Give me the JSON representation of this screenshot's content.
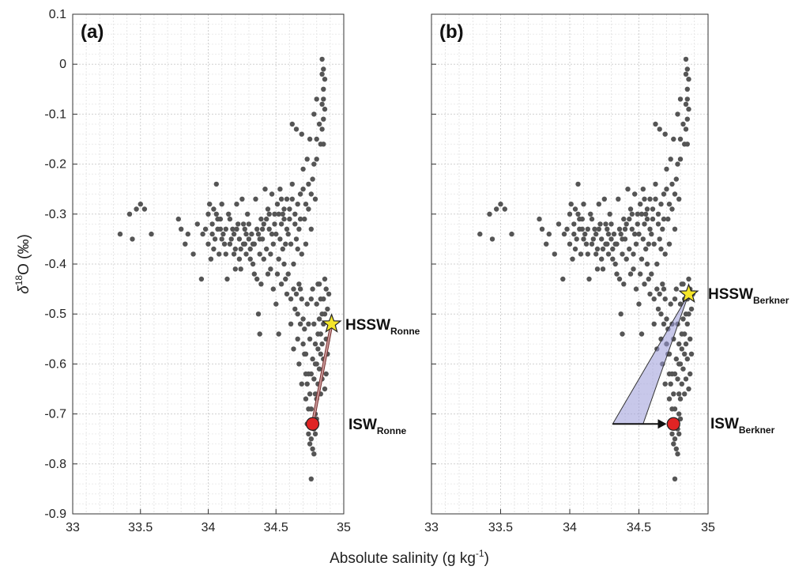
{
  "chart_data": [
    {
      "type": "scatter",
      "panel_label": "(a)",
      "xlim": [
        33,
        35
      ],
      "ylim": [
        -0.9,
        0.1
      ],
      "xlabel": "Absolute salinity (g kg",
      "xlabel_sup": "-1",
      "xlabel_end": ")",
      "ylabel_prefix": "δ",
      "ylabel_sup": "18",
      "ylabel_main": "O (‰)",
      "grid": true,
      "x_ticks": [
        33,
        33.5,
        34,
        34.5,
        35
      ],
      "x_tick_labels": [
        "33",
        "33.5",
        "34",
        "34.5",
        "35"
      ],
      "y_ticks": [
        0.1,
        0,
        -0.1,
        -0.2,
        -0.3,
        -0.4,
        -0.5,
        -0.6,
        -0.7,
        -0.8,
        -0.9
      ],
      "y_tick_labels": [
        "0.1",
        "0",
        "-0.1",
        "-0.2",
        "-0.3",
        "-0.4",
        "-0.5",
        "-0.6",
        "-0.7",
        "-0.8",
        "-0.9"
      ],
      "hssw": {
        "x": 34.91,
        "y": -0.52,
        "label": "HSSW",
        "sub": "Ronne"
      },
      "isw": {
        "x": 34.77,
        "y": -0.72,
        "label": "ISW",
        "sub": "Ronne"
      },
      "colors": {
        "points": "#555555",
        "star": "#f5e62a",
        "circle": "#e02424",
        "mixing_fill": "#c99a9a"
      }
    },
    {
      "type": "scatter",
      "panel_label": "(b)",
      "xlim": [
        33,
        35
      ],
      "ylim": [
        -0.9,
        0.1
      ],
      "grid": true,
      "x_ticks": [
        33,
        33.5,
        34,
        34.5,
        35
      ],
      "x_tick_labels": [
        "33",
        "33.5",
        "34",
        "34.5",
        "35"
      ],
      "hssw": {
        "x": 34.86,
        "y": -0.46,
        "label": "HSSW",
        "sub": "Berkner"
      },
      "isw": {
        "x": 34.75,
        "y": -0.72,
        "label": "ISW",
        "sub": "Berkner"
      },
      "triangle": [
        [
          34.86,
          -0.46
        ],
        [
          34.31,
          -0.72
        ],
        [
          34.53,
          -0.72
        ]
      ],
      "arrow": {
        "from": [
          34.31,
          -0.72
        ],
        "to": [
          34.7,
          -0.72
        ]
      },
      "colors": {
        "points": "#555555",
        "star": "#f5e62a",
        "circle": "#e02424",
        "triangle_fill": "#9a9ad8"
      }
    }
  ],
  "points": [
    [
      33.35,
      -0.34
    ],
    [
      33.42,
      -0.3
    ],
    [
      33.44,
      -0.35
    ],
    [
      33.47,
      -0.29
    ],
    [
      33.5,
      -0.28
    ],
    [
      33.53,
      -0.29
    ],
    [
      33.58,
      -0.34
    ],
    [
      33.78,
      -0.31
    ],
    [
      33.8,
      -0.33
    ],
    [
      33.85,
      -0.34
    ],
    [
      33.89,
      -0.38
    ],
    [
      33.95,
      -0.43
    ],
    [
      33.98,
      -0.33
    ],
    [
      34.0,
      -0.36
    ],
    [
      34.01,
      -0.28
    ],
    [
      34.02,
      -0.39
    ],
    [
      34.03,
      -0.32
    ],
    [
      34.04,
      -0.29
    ],
    [
      34.05,
      -0.35
    ],
    [
      34.06,
      -0.24
    ],
    [
      34.07,
      -0.33
    ],
    [
      34.08,
      -0.38
    ],
    [
      34.09,
      -0.31
    ],
    [
      34.1,
      -0.28
    ],
    [
      34.11,
      -0.34
    ],
    [
      34.12,
      -0.36
    ],
    [
      34.14,
      -0.43
    ],
    [
      34.15,
      -0.3
    ],
    [
      34.16,
      -0.36
    ],
    [
      34.18,
      -0.33
    ],
    [
      34.19,
      -0.38
    ],
    [
      34.2,
      -0.37
    ],
    [
      34.21,
      -0.28
    ],
    [
      34.22,
      -0.32
    ],
    [
      34.23,
      -0.35
    ],
    [
      34.24,
      -0.41
    ],
    [
      34.25,
      -0.27
    ],
    [
      34.26,
      -0.36
    ],
    [
      34.27,
      -0.33
    ],
    [
      34.28,
      -0.38
    ],
    [
      34.29,
      -0.3
    ],
    [
      34.3,
      -0.35
    ],
    [
      34.31,
      -0.37
    ],
    [
      34.32,
      -0.34
    ],
    [
      34.33,
      -0.4
    ],
    [
      34.34,
      -0.36
    ],
    [
      34.35,
      -0.27
    ],
    [
      34.36,
      -0.43
    ],
    [
      34.37,
      -0.34
    ],
    [
      34.38,
      -0.38
    ],
    [
      34.39,
      -0.31
    ],
    [
      34.4,
      -0.35
    ],
    [
      34.41,
      -0.32
    ],
    [
      34.42,
      -0.25
    ],
    [
      34.43,
      -0.37
    ],
    [
      34.44,
      -0.29
    ],
    [
      34.45,
      -0.33
    ],
    [
      34.46,
      -0.41
    ],
    [
      34.47,
      -0.26
    ],
    [
      34.48,
      -0.36
    ],
    [
      34.49,
      -0.3
    ],
    [
      34.5,
      -0.34
    ],
    [
      34.51,
      -0.28
    ],
    [
      34.52,
      -0.39
    ],
    [
      34.53,
      -0.25
    ],
    [
      34.54,
      -0.32
    ],
    [
      34.55,
      -0.37
    ],
    [
      34.56,
      -0.29
    ],
    [
      34.57,
      -0.43
    ],
    [
      34.58,
      -0.27
    ],
    [
      34.59,
      -0.34
    ],
    [
      34.6,
      -0.31
    ],
    [
      34.61,
      -0.36
    ],
    [
      34.62,
      -0.24
    ],
    [
      34.63,
      -0.4
    ],
    [
      34.64,
      -0.3
    ],
    [
      34.65,
      -0.35
    ],
    [
      34.66,
      -0.28
    ],
    [
      34.67,
      -0.33
    ],
    [
      34.68,
      -0.26
    ],
    [
      34.69,
      -0.38
    ],
    [
      34.7,
      -0.21
    ],
    [
      34.71,
      -0.31
    ],
    [
      34.72,
      -0.36
    ],
    [
      34.73,
      -0.19
    ],
    [
      34.74,
      -0.29
    ],
    [
      34.75,
      -0.15
    ],
    [
      34.76,
      -0.33
    ],
    [
      34.77,
      -0.23
    ],
    [
      34.78,
      -0.1
    ],
    [
      34.79,
      -0.27
    ],
    [
      34.62,
      -0.12
    ],
    [
      34.65,
      -0.13
    ],
    [
      34.69,
      -0.14
    ],
    [
      34.8,
      -0.07
    ],
    [
      34.82,
      -0.12
    ],
    [
      34.83,
      -0.16
    ],
    [
      34.84,
      -0.08
    ],
    [
      34.8,
      -0.15
    ],
    [
      34.84,
      0.01
    ],
    [
      34.85,
      -0.01
    ],
    [
      34.84,
      -0.02
    ],
    [
      34.86,
      -0.03
    ],
    [
      34.85,
      -0.05
    ],
    [
      34.85,
      -0.07
    ],
    [
      34.86,
      -0.09
    ],
    [
      34.85,
      -0.11
    ],
    [
      34.84,
      -0.13
    ],
    [
      34.85,
      -0.16
    ],
    [
      34.37,
      -0.5
    ],
    [
      34.38,
      -0.54
    ],
    [
      34.5,
      -0.48
    ],
    [
      34.52,
      -0.54
    ],
    [
      34.58,
      -0.46
    ],
    [
      34.61,
      -0.52
    ],
    [
      34.63,
      -0.57
    ],
    [
      34.64,
      -0.49
    ],
    [
      34.66,
      -0.55
    ],
    [
      34.67,
      -0.6
    ],
    [
      34.68,
      -0.45
    ],
    [
      34.69,
      -0.64
    ],
    [
      34.7,
      -0.51
    ],
    [
      34.71,
      -0.58
    ],
    [
      34.72,
      -0.67
    ],
    [
      34.73,
      -0.48
    ],
    [
      34.74,
      -0.62
    ],
    [
      34.75,
      -0.55
    ],
    [
      34.76,
      -0.69
    ],
    [
      34.77,
      -0.45
    ],
    [
      34.78,
      -0.52
    ],
    [
      34.79,
      -0.6
    ],
    [
      34.8,
      -0.48
    ],
    [
      34.81,
      -0.57
    ],
    [
      34.82,
      -0.44
    ],
    [
      34.83,
      -0.54
    ],
    [
      34.84,
      -0.5
    ],
    [
      34.85,
      -0.47
    ],
    [
      34.86,
      -0.43
    ],
    [
      34.87,
      -0.55
    ],
    [
      34.88,
      -0.49
    ],
    [
      34.89,
      -0.46
    ],
    [
      34.88,
      -0.58
    ],
    [
      34.87,
      -0.62
    ],
    [
      34.86,
      -0.65
    ],
    [
      34.85,
      -0.59
    ],
    [
      34.84,
      -0.63
    ],
    [
      34.83,
      -0.66
    ],
    [
      34.82,
      -0.61
    ],
    [
      34.81,
      -0.64
    ],
    [
      34.8,
      -0.67
    ],
    [
      34.79,
      -0.7
    ],
    [
      34.78,
      -0.73
    ],
    [
      34.79,
      -0.66
    ],
    [
      34.76,
      -0.75
    ],
    [
      34.77,
      -0.77
    ],
    [
      34.78,
      -0.78
    ],
    [
      34.75,
      -0.76
    ],
    [
      34.74,
      -0.74
    ],
    [
      34.73,
      -0.72
    ],
    [
      34.79,
      -0.74
    ],
    [
      34.8,
      -0.71
    ],
    [
      34.76,
      -0.83
    ],
    [
      34.72,
      -0.58
    ],
    [
      34.74,
      -0.52
    ],
    [
      34.76,
      -0.47
    ],
    [
      34.81,
      -0.44
    ],
    [
      34.83,
      -0.47
    ],
    [
      34.85,
      -0.52
    ],
    [
      34.87,
      -0.45
    ],
    [
      34.84,
      -0.56
    ],
    [
      34.86,
      -0.5
    ],
    [
      34.82,
      -0.51
    ],
    [
      34.81,
      -0.54
    ],
    [
      34.83,
      -0.58
    ],
    [
      34.8,
      -0.6
    ],
    [
      34.79,
      -0.56
    ],
    [
      34.78,
      -0.63
    ],
    [
      34.77,
      -0.59
    ],
    [
      34.76,
      -0.62
    ],
    [
      34.75,
      -0.66
    ],
    [
      34.74,
      -0.69
    ],
    [
      34.73,
      -0.64
    ],
    [
      34.72,
      -0.62
    ],
    [
      34.71,
      -0.53
    ],
    [
      34.7,
      -0.56
    ],
    [
      34.69,
      -0.47
    ],
    [
      34.68,
      -0.52
    ],
    [
      34.67,
      -0.44
    ],
    [
      34.66,
      -0.5
    ],
    [
      34.65,
      -0.46
    ],
    [
      34.63,
      -0.45
    ],
    [
      34.61,
      -0.47
    ],
    [
      34.59,
      -0.42
    ],
    [
      34.56,
      -0.4
    ],
    [
      34.54,
      -0.44
    ],
    [
      34.51,
      -0.42
    ],
    [
      34.48,
      -0.45
    ],
    [
      34.46,
      -0.38
    ],
    [
      34.44,
      -0.42
    ],
    [
      34.41,
      -0.39
    ],
    [
      34.39,
      -0.44
    ],
    [
      34.34,
      -0.42
    ],
    [
      34.31,
      -0.39
    ],
    [
      34.28,
      -0.34
    ],
    [
      34.26,
      -0.32
    ],
    [
      34.23,
      -0.39
    ],
    [
      34.2,
      -0.41
    ],
    [
      34.17,
      -0.35
    ],
    [
      34.13,
      -0.33
    ],
    [
      34.1,
      -0.35
    ],
    [
      34.07,
      -0.31
    ],
    [
      34.04,
      -0.37
    ],
    [
      34.0,
      -0.3
    ],
    [
      33.96,
      -0.34
    ],
    [
      33.92,
      -0.32
    ],
    [
      33.83,
      -0.36
    ],
    [
      34.52,
      -0.3
    ],
    [
      34.54,
      -0.27
    ],
    [
      34.56,
      -0.31
    ],
    [
      34.58,
      -0.33
    ],
    [
      34.6,
      -0.29
    ],
    [
      34.62,
      -0.27
    ],
    [
      34.64,
      -0.32
    ],
    [
      34.66,
      -0.37
    ],
    [
      34.68,
      -0.31
    ],
    [
      34.7,
      -0.25
    ],
    [
      34.72,
      -0.28
    ],
    [
      34.74,
      -0.24
    ],
    [
      34.76,
      -0.26
    ],
    [
      34.78,
      -0.2
    ],
    [
      34.8,
      -0.19
    ],
    [
      34.57,
      -0.36
    ],
    [
      34.55,
      -0.3
    ],
    [
      34.53,
      -0.35
    ],
    [
      34.49,
      -0.32
    ],
    [
      34.47,
      -0.34
    ],
    [
      34.45,
      -0.3
    ],
    [
      34.43,
      -0.31
    ],
    [
      34.4,
      -0.33
    ],
    [
      34.38,
      -0.35
    ],
    [
      34.36,
      -0.33
    ],
    [
      34.33,
      -0.36
    ],
    [
      34.3,
      -0.32
    ],
    [
      34.27,
      -0.36
    ],
    [
      34.24,
      -0.37
    ],
    [
      34.21,
      -0.33
    ],
    [
      34.19,
      -0.34
    ],
    [
      34.16,
      -0.31
    ],
    [
      34.13,
      -0.38
    ],
    [
      34.09,
      -0.33
    ],
    [
      34.06,
      -0.3
    ],
    [
      34.03,
      -0.34
    ]
  ]
}
